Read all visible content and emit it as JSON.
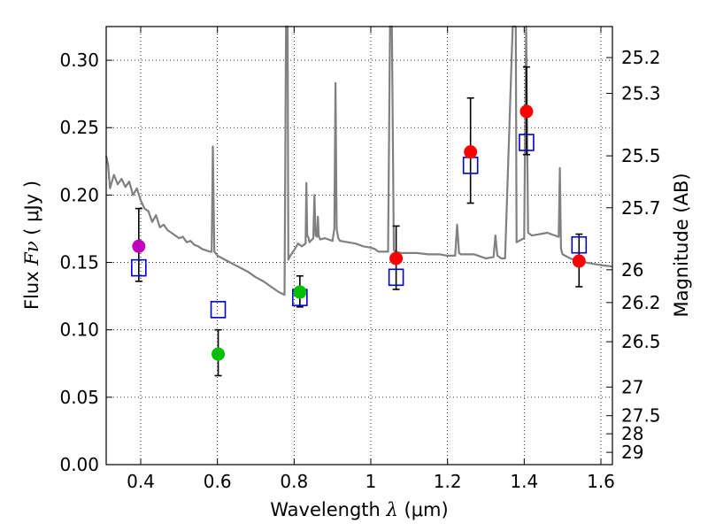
{
  "chart_data": {
    "type": "scatter",
    "xlabel_prefix": "Wavelength  ",
    "xlabel_symbol": "λ",
    "xlabel_unit": " (μm)",
    "ylabel_prefix": "Flux  ",
    "ylabel_symbol": "Fν",
    "ylabel_unit": "  ( μJy )",
    "y2label": "Magnitude (AB)",
    "xlim": [
      0.31,
      1.63
    ],
    "ylim": [
      0.0,
      0.325
    ],
    "grid": true,
    "x_ticks": [
      0.4,
      0.6,
      0.8,
      1.0,
      1.2,
      1.4,
      1.6
    ],
    "x_tick_labels": [
      "0.4",
      "0.6",
      "0.8",
      "1",
      "1.2",
      "1.4",
      "1.6"
    ],
    "y_ticks": [
      0.0,
      0.05,
      0.1,
      0.15,
      0.2,
      0.25,
      0.3
    ],
    "y_tick_labels": [
      "0.00",
      "0.05",
      "0.10",
      "0.15",
      "0.20",
      "0.25",
      "0.30"
    ],
    "mag_ticks": [
      25.2,
      25.3,
      25.5,
      25.7,
      26.0,
      26.2,
      26.5,
      27.0,
      27.5,
      28.0,
      29.0
    ],
    "mag_tick_labels": [
      "25.2",
      "25.3",
      "25.5",
      "25.7",
      "26",
      "26.2",
      "26.5",
      "27",
      "27.5",
      "28",
      "29"
    ],
    "observed_points": [
      {
        "x": 0.395,
        "y": 0.162,
        "yerr_low": 0.136,
        "yerr_high": 0.19,
        "color": "#bf00bf"
      },
      {
        "x": 0.602,
        "y": 0.082,
        "yerr_low": 0.066,
        "yerr_high": 0.1,
        "color": "#00c000"
      },
      {
        "x": 0.815,
        "y": 0.128,
        "yerr_low": 0.117,
        "yerr_high": 0.14,
        "color": "#00c000"
      },
      {
        "x": 1.066,
        "y": 0.153,
        "yerr_low": 0.13,
        "yerr_high": 0.177,
        "color": "#ff0000"
      },
      {
        "x": 1.26,
        "y": 0.232,
        "yerr_low": 0.194,
        "yerr_high": 0.272,
        "color": "#ff0000"
      },
      {
        "x": 1.406,
        "y": 0.262,
        "yerr_low": 0.23,
        "yerr_high": 0.295,
        "color": "#ff0000"
      },
      {
        "x": 1.543,
        "y": 0.151,
        "yerr_low": 0.132,
        "yerr_high": 0.171,
        "color": "#ff0000"
      }
    ],
    "model_points": [
      {
        "x": 0.395,
        "y": 0.146
      },
      {
        "x": 0.602,
        "y": 0.115
      },
      {
        "x": 0.815,
        "y": 0.124
      },
      {
        "x": 1.066,
        "y": 0.139
      },
      {
        "x": 1.26,
        "y": 0.222
      },
      {
        "x": 1.406,
        "y": 0.239
      },
      {
        "x": 1.543,
        "y": 0.163
      }
    ],
    "model_spectrum": {
      "color": "#808080",
      "x": [
        0.31,
        0.315,
        0.32,
        0.33,
        0.34,
        0.35,
        0.36,
        0.37,
        0.38,
        0.39,
        0.4,
        0.41,
        0.42,
        0.43,
        0.44,
        0.45,
        0.46,
        0.47,
        0.48,
        0.49,
        0.5,
        0.51,
        0.52,
        0.53,
        0.54,
        0.55,
        0.56,
        0.57,
        0.58,
        0.585,
        0.588,
        0.592,
        0.595,
        0.6,
        0.62,
        0.64,
        0.66,
        0.68,
        0.7,
        0.72,
        0.74,
        0.76,
        0.775,
        0.779,
        0.781,
        0.783,
        0.785,
        0.79,
        0.8,
        0.81,
        0.82,
        0.83,
        0.832,
        0.834,
        0.838,
        0.84,
        0.85,
        0.853,
        0.856,
        0.86,
        0.862,
        0.864,
        0.868,
        0.88,
        0.9,
        0.905,
        0.908,
        0.911,
        0.915,
        0.92,
        0.94,
        0.96,
        0.98,
        1.0,
        1.01,
        1.02,
        1.03,
        1.045,
        1.05,
        1.052,
        1.055,
        1.06,
        1.065,
        1.08,
        1.1,
        1.12,
        1.15,
        1.18,
        1.2,
        1.22,
        1.225,
        1.23,
        1.235,
        1.24,
        1.26,
        1.27,
        1.28,
        1.3,
        1.32,
        1.325,
        1.33,
        1.335,
        1.34,
        1.35,
        1.37,
        1.375,
        1.378,
        1.38,
        1.4,
        1.405,
        1.41,
        1.42,
        1.44,
        1.46,
        1.48,
        1.49,
        1.493,
        1.496,
        1.5,
        1.52,
        1.54,
        1.56,
        1.58,
        1.6,
        1.63
      ],
      "y": [
        0.229,
        0.222,
        0.205,
        0.215,
        0.208,
        0.212,
        0.206,
        0.21,
        0.2,
        0.205,
        0.196,
        0.19,
        0.188,
        0.18,
        0.185,
        0.176,
        0.178,
        0.174,
        0.172,
        0.17,
        0.168,
        0.169,
        0.165,
        0.166,
        0.163,
        0.162,
        0.16,
        0.159,
        0.158,
        0.158,
        0.236,
        0.158,
        0.157,
        0.155,
        0.152,
        0.149,
        0.146,
        0.143,
        0.139,
        0.136,
        0.132,
        0.128,
        0.126,
        0.325,
        0.325,
        0.325,
        0.152,
        0.155,
        0.159,
        0.164,
        0.162,
        0.164,
        0.209,
        0.17,
        0.168,
        0.165,
        0.168,
        0.2,
        0.17,
        0.169,
        0.184,
        0.17,
        0.167,
        0.168,
        0.166,
        0.175,
        0.283,
        0.175,
        0.168,
        0.166,
        0.165,
        0.164,
        0.162,
        0.161,
        0.16,
        0.158,
        0.158,
        0.158,
        0.325,
        0.325,
        0.325,
        0.159,
        0.158,
        0.157,
        0.157,
        0.157,
        0.156,
        0.156,
        0.155,
        0.155,
        0.178,
        0.157,
        0.156,
        0.156,
        0.156,
        0.156,
        0.155,
        0.153,
        0.154,
        0.17,
        0.155,
        0.154,
        0.153,
        0.153,
        0.325,
        0.325,
        0.325,
        0.165,
        0.168,
        0.325,
        0.172,
        0.17,
        0.171,
        0.172,
        0.17,
        0.169,
        0.22,
        0.16,
        0.156,
        0.153,
        0.151,
        0.15,
        0.149,
        0.148,
        0.147
      ]
    }
  }
}
